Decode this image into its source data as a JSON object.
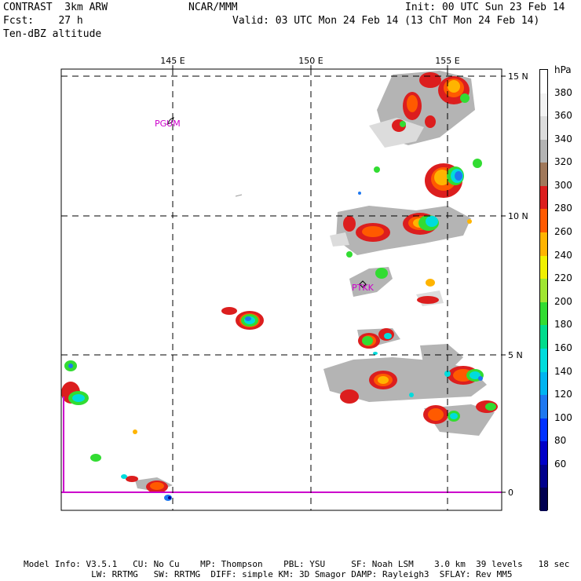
{
  "header": {
    "model": "CONTRAST  3km ARW",
    "forecast": "Fcst:    27 h",
    "field": "Ten-dBZ altitude",
    "source": "NCAR/MMM",
    "init": "Init: 00 UTC Sun 23 Feb 14",
    "valid": "Valid: 03 UTC Mon 24 Feb 14 (13 ChT Mon 24 Feb 14)"
  },
  "map": {
    "lon_labels": [
      "145 E",
      "150 E",
      "155 E"
    ],
    "lat_labels": [
      "15 N",
      "10 N",
      "5 N",
      "0"
    ],
    "stations": [
      "PGUM",
      "PTKK"
    ]
  },
  "legend": {
    "unit": "hPa",
    "levels": [
      {
        "label": "380",
        "color": "#f2f2f2"
      },
      {
        "label": "360",
        "color": "#dcdcdc"
      },
      {
        "label": "340",
        "color": "#b4b4b4"
      },
      {
        "label": "320",
        "color": "#a0785a"
      },
      {
        "label": "300",
        "color": "#dc1e1e"
      },
      {
        "label": "280",
        "color": "#ff5a00"
      },
      {
        "label": "260",
        "color": "#ffb400"
      },
      {
        "label": "240",
        "color": "#f0f000"
      },
      {
        "label": "220",
        "color": "#a0e632"
      },
      {
        "label": "200",
        "color": "#32dc32"
      },
      {
        "label": "180",
        "color": "#00dc8c"
      },
      {
        "label": "160",
        "color": "#00dcdc"
      },
      {
        "label": "140",
        "color": "#00b4f0"
      },
      {
        "label": "120",
        "color": "#1e78f0"
      },
      {
        "label": "100",
        "color": "#0032ff"
      },
      {
        "label": "80",
        "color": "#0000c8"
      },
      {
        "label": "60",
        "color": "#00008c"
      }
    ],
    "top_color": "#ffffff",
    "bottom_color": "#000050"
  },
  "footer": {
    "line1": "Model Info: V3.5.1   CU: No Cu    MP: Thompson    PBL: YSU     SF: Noah LSM    3.0 km  39 levels   18 sec",
    "line2": "             LW: RRTMG   SW: RRTMG  DIFF: simple KM: 3D Smagor DAMP: Rayleigh3  SFLAY: Rev MM5"
  }
}
